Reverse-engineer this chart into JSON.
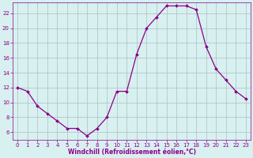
{
  "x": [
    0,
    1,
    2,
    3,
    4,
    5,
    6,
    7,
    8,
    9,
    10,
    11,
    12,
    13,
    14,
    15,
    16,
    17,
    18,
    19,
    20,
    21,
    22,
    23
  ],
  "y": [
    12,
    11.5,
    9.5,
    8.5,
    7.5,
    6.5,
    6.5,
    5.5,
    6.5,
    8,
    11.5,
    11.5,
    16.5,
    20,
    21.5,
    23,
    23,
    23,
    22.5,
    17.5,
    14.5,
    13,
    11.5,
    10.5
  ],
  "line_color": "#8b008b",
  "marker": "D",
  "marker_size": 2,
  "bg_color": "#d8f0f0",
  "grid_color": "#b0c8c8",
  "xlabel": "Windchill (Refroidissement éolien,°C)",
  "xlabel_color": "#8b008b",
  "tick_color": "#8b008b",
  "xlim": [
    -0.5,
    23.5
  ],
  "ylim": [
    5.0,
    23.5
  ],
  "yticks": [
    6,
    8,
    10,
    12,
    14,
    16,
    18,
    20,
    22
  ],
  "xticks": [
    0,
    1,
    2,
    3,
    4,
    5,
    6,
    7,
    8,
    9,
    10,
    11,
    12,
    13,
    14,
    15,
    16,
    17,
    18,
    19,
    20,
    21,
    22,
    23
  ],
  "tick_fontsize": 5,
  "xlabel_fontsize": 5.5,
  "xlabel_fontweight": "bold"
}
